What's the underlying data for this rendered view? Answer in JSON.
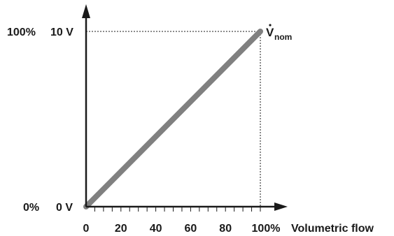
{
  "chart_data": {
    "type": "line",
    "xlabel": "Volumetric flow",
    "x_ticks": [
      "0",
      "20",
      "40",
      "60",
      "80",
      "100%"
    ],
    "xlim": [
      0,
      100
    ],
    "ylim": [
      0,
      100
    ],
    "y_labels_percent": [
      "0%",
      "100%"
    ],
    "y_labels_voltage": [
      "0 V",
      "10 V"
    ],
    "series": [
      {
        "x": [
          0,
          100
        ],
        "y": [
          0,
          100
        ]
      }
    ],
    "annotation": {
      "base": "V",
      "subscript": "nom"
    },
    "grid": false,
    "colors": {
      "line": "#808080",
      "axes": "#1a1a1a",
      "guides": "#1a1a1a"
    }
  }
}
